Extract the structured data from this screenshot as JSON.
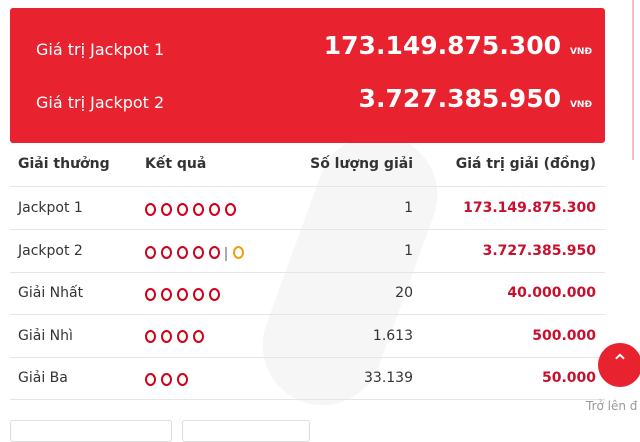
{
  "header": {
    "jackpots": [
      {
        "label": "Giá trị Jackpot 1",
        "amount": "173.149.875.300",
        "unit": "VNĐ"
      },
      {
        "label": "Giá trị Jackpot 2",
        "amount": "3.727.385.950",
        "unit": "VNĐ"
      }
    ]
  },
  "table": {
    "columns": [
      "Giải thưởng",
      "Kết quả",
      "Số lượng giải",
      "Giá trị giải (đồng)"
    ],
    "rows": [
      [
        "Jackpot 1",
        "1",
        "173.149.875.300"
      ],
      [
        "Jackpot 2",
        "1",
        "3.727.385.950"
      ],
      [
        "Giải Nhất",
        "20",
        "40.000.000"
      ],
      [
        "Giải Nhì",
        "1.613",
        "500.000"
      ],
      [
        "Giải Ba",
        "33.139",
        "50.000"
      ]
    ]
  },
  "scroll_top": "Trở lên đ"
}
